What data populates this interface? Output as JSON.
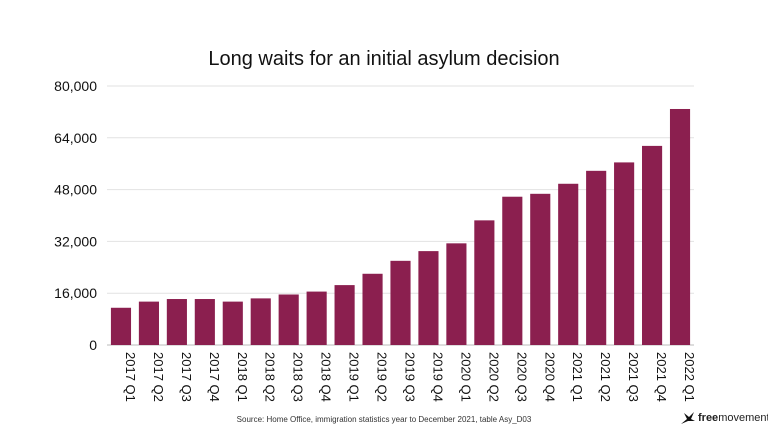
{
  "chart_data": {
    "type": "bar",
    "title": "Long waits for an initial asylum decision",
    "xlabel": "",
    "ylabel": "",
    "ylim": [
      0,
      80000
    ],
    "yticks": [
      "0",
      "16,000",
      "32,000",
      "48,000",
      "64,000",
      "80,000"
    ],
    "ytick_values": [
      0,
      16000,
      32000,
      48000,
      64000,
      80000
    ],
    "grid": true,
    "bar_color": "#8b1f4f",
    "categories": [
      "2017 Q1",
      "2017 Q2",
      "2017 Q3",
      "2017 Q4",
      "2018 Q1",
      "2018 Q2",
      "2018 Q3",
      "2018 Q4",
      "2019 Q1",
      "2019 Q2",
      "2019 Q3",
      "2019 Q4",
      "2020 Q1",
      "2020 Q2",
      "2020 Q3",
      "2020 Q4",
      "2021 Q1",
      "2021 Q2",
      "2021 Q3",
      "2021 Q4",
      "2022 Q1"
    ],
    "values": [
      11500,
      13400,
      14200,
      14200,
      13400,
      14400,
      15600,
      16500,
      18500,
      22000,
      26000,
      29000,
      31400,
      38500,
      45800,
      46700,
      49800,
      53800,
      56400,
      61500,
      72900
    ]
  },
  "source": "Source: Home Office, immigration statistics year to December 2021, table Asy_D03",
  "logo": {
    "bold": "free",
    "rest": "movement"
  }
}
